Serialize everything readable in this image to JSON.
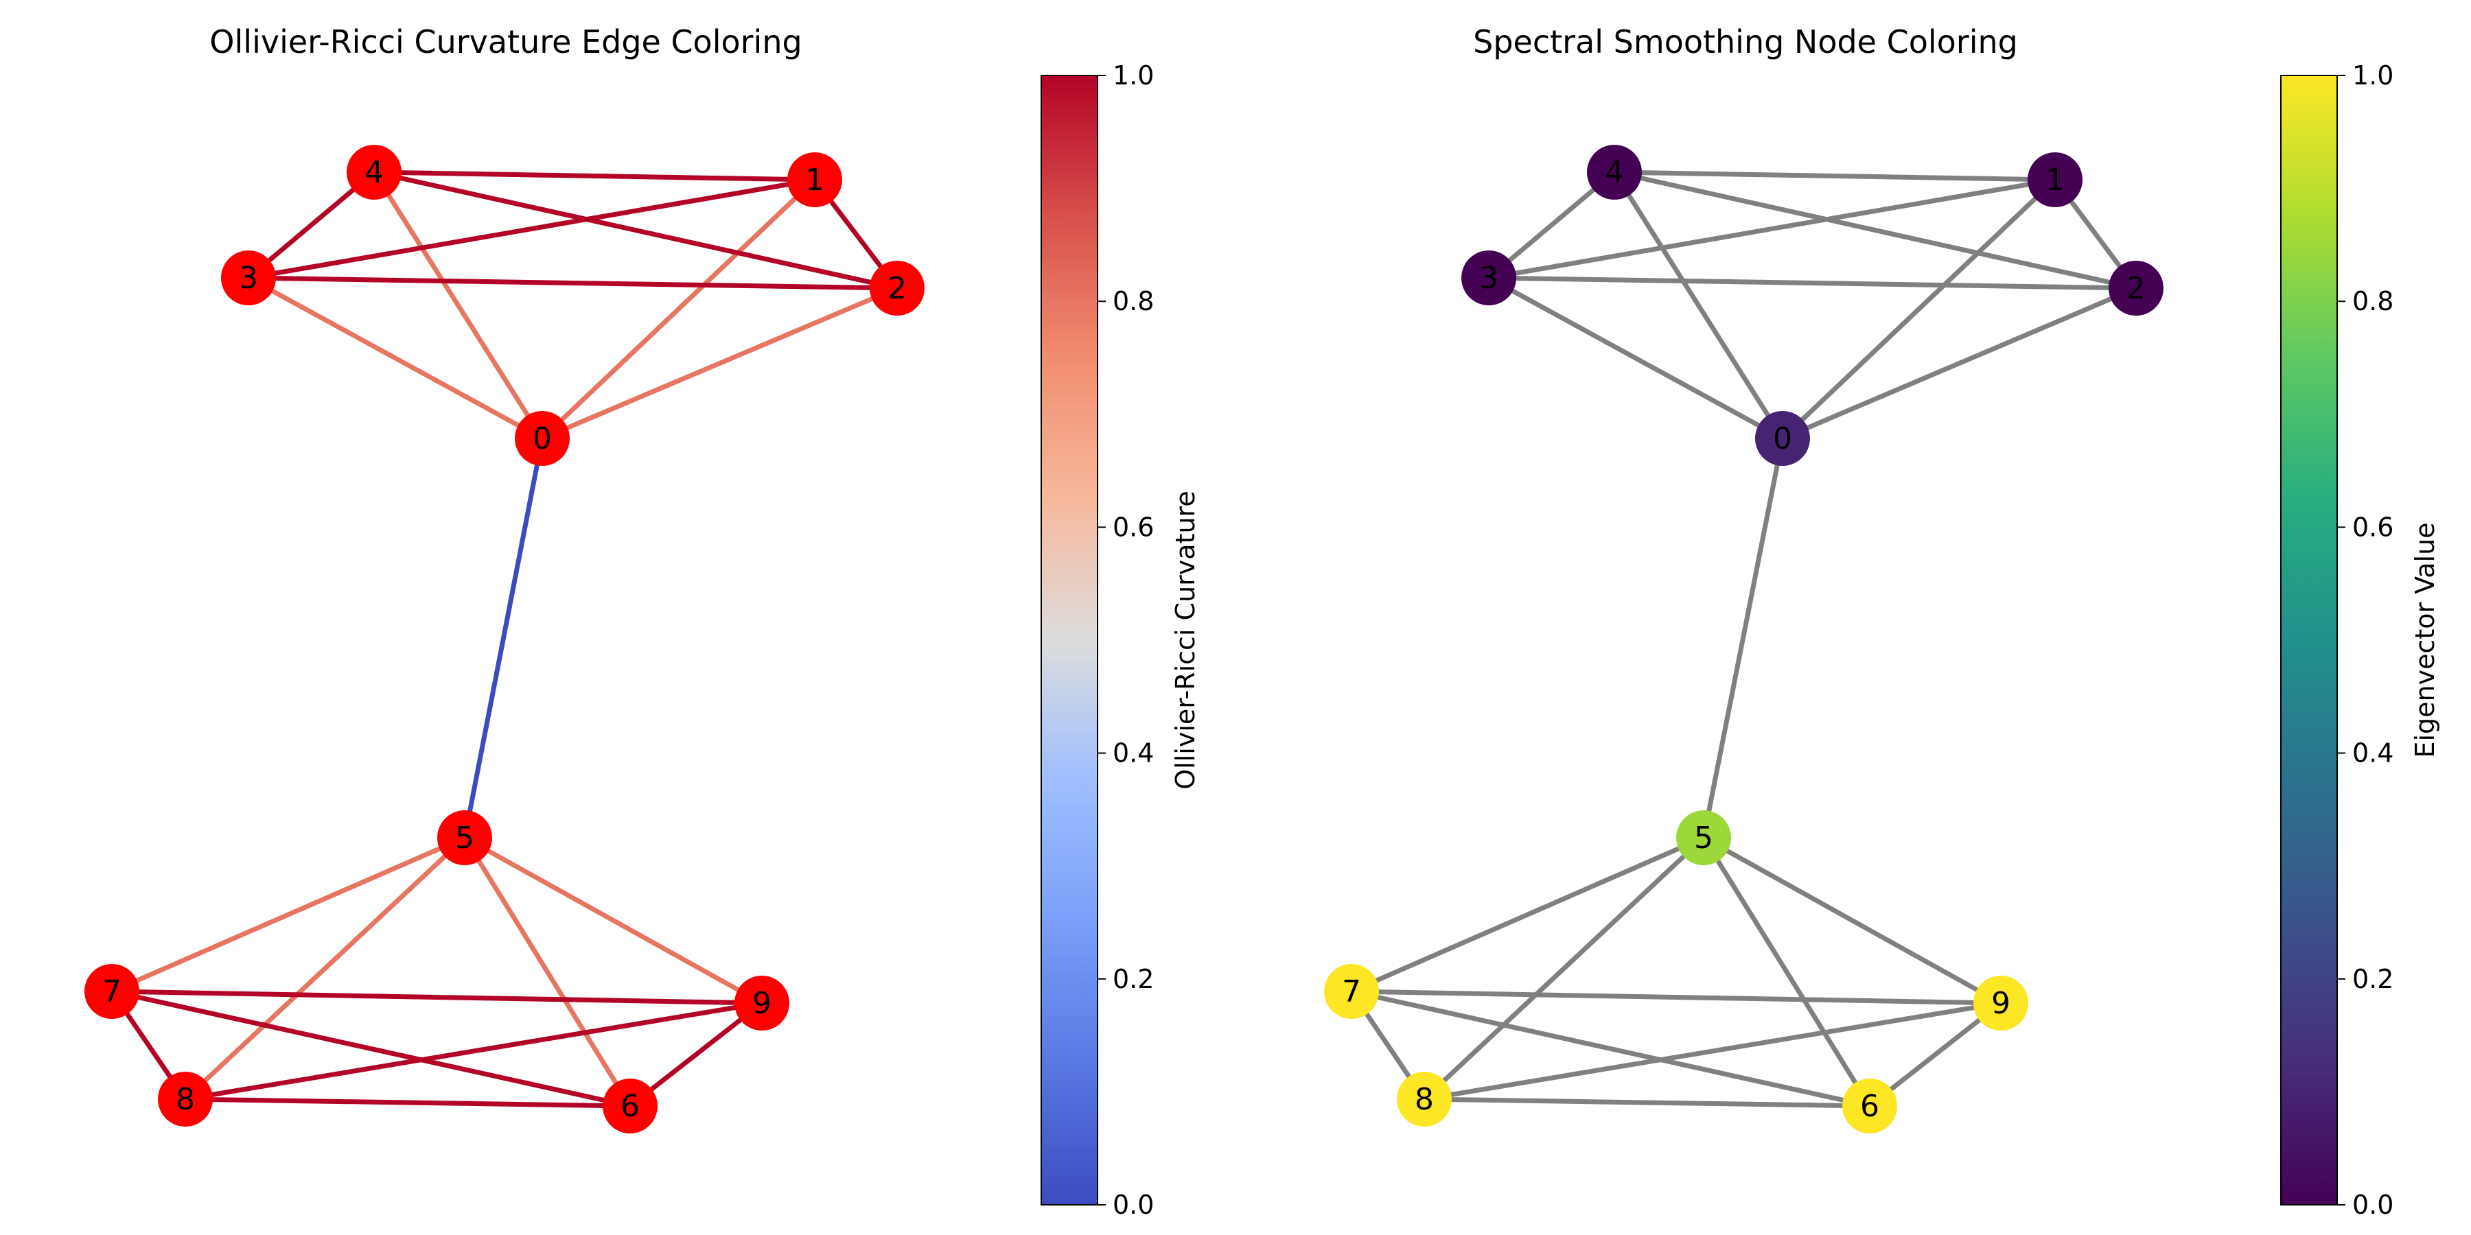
{
  "panels": [
    {
      "title": "Ollivier-Ricci Curvature Edge Coloring",
      "mode": "edge-coloring",
      "node_color": "#ff0000",
      "colorbar": {
        "label": "Ollivier-Ricci Curvature",
        "colormap": "coolwarm",
        "range": [
          0,
          1
        ],
        "ticks": [
          "0.0",
          "0.2",
          "0.4",
          "0.6",
          "0.8",
          "1.0"
        ]
      }
    },
    {
      "title": "Spectral Smoothing Node Coloring",
      "mode": "node-coloring",
      "edge_color": "#808080",
      "colorbar": {
        "label": "Eigenvector Value",
        "colormap": "viridis",
        "range": [
          0,
          1
        ],
        "ticks": [
          "0.0",
          "0.2",
          "0.4",
          "0.6",
          "0.8",
          "1.0"
        ]
      }
    }
  ],
  "graph": {
    "nodes": [
      {
        "id": "0",
        "eigenvector_value": 0.1
      },
      {
        "id": "1",
        "eigenvector_value": 0.0
      },
      {
        "id": "2",
        "eigenvector_value": 0.0
      },
      {
        "id": "3",
        "eigenvector_value": 0.0
      },
      {
        "id": "4",
        "eigenvector_value": 0.0
      },
      {
        "id": "5",
        "eigenvector_value": 0.85
      },
      {
        "id": "6",
        "eigenvector_value": 1.0
      },
      {
        "id": "7",
        "eigenvector_value": 1.0
      },
      {
        "id": "8",
        "eigenvector_value": 1.0
      },
      {
        "id": "9",
        "eigenvector_value": 1.0
      }
    ],
    "edges": [
      {
        "source": "0",
        "target": "1",
        "curvature": 0.8
      },
      {
        "source": "0",
        "target": "2",
        "curvature": 0.8
      },
      {
        "source": "0",
        "target": "3",
        "curvature": 0.8
      },
      {
        "source": "0",
        "target": "4",
        "curvature": 0.8
      },
      {
        "source": "0",
        "target": "5",
        "curvature": 0.0
      },
      {
        "source": "1",
        "target": "2",
        "curvature": 1.0
      },
      {
        "source": "1",
        "target": "3",
        "curvature": 1.0
      },
      {
        "source": "1",
        "target": "4",
        "curvature": 1.0
      },
      {
        "source": "2",
        "target": "3",
        "curvature": 1.0
      },
      {
        "source": "2",
        "target": "4",
        "curvature": 1.0
      },
      {
        "source": "3",
        "target": "4",
        "curvature": 1.0
      },
      {
        "source": "5",
        "target": "6",
        "curvature": 0.8
      },
      {
        "source": "5",
        "target": "7",
        "curvature": 0.8
      },
      {
        "source": "5",
        "target": "8",
        "curvature": 0.8
      },
      {
        "source": "5",
        "target": "9",
        "curvature": 0.8
      },
      {
        "source": "6",
        "target": "7",
        "curvature": 1.0
      },
      {
        "source": "6",
        "target": "8",
        "curvature": 1.0
      },
      {
        "source": "6",
        "target": "9",
        "curvature": 1.0
      },
      {
        "source": "7",
        "target": "8",
        "curvature": 1.0
      },
      {
        "source": "7",
        "target": "9",
        "curvature": 1.0
      },
      {
        "source": "8",
        "target": "9",
        "curvature": 1.0
      }
    ]
  }
}
